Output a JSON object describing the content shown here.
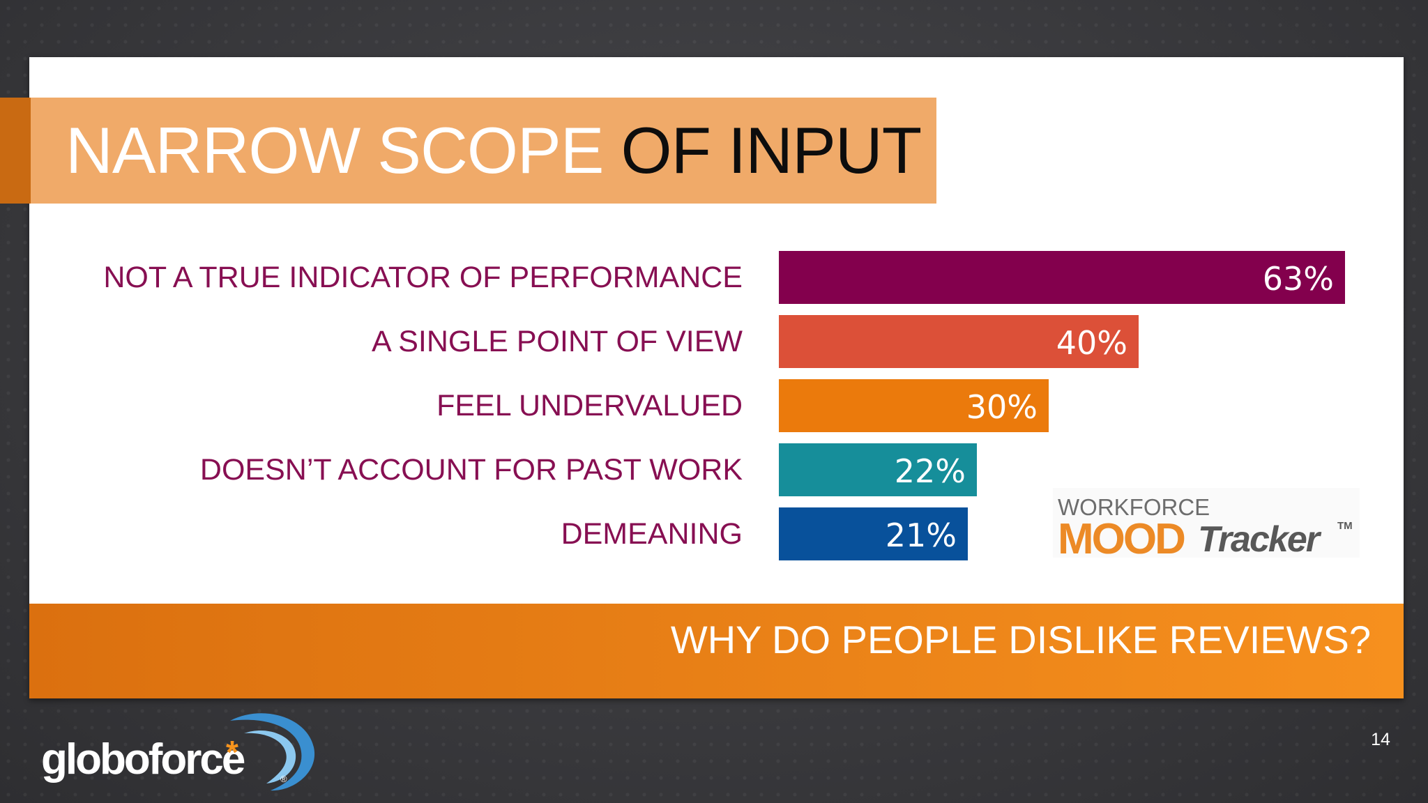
{
  "slide": {
    "title_part1": "NARROW SCOPE",
    "title_part2": "OF INPUT",
    "footer_question": "WHY DO PEOPLE DISLIKE REVIEWS?",
    "page_number": "14"
  },
  "logos": {
    "mood_top": "WORKFORCE",
    "mood_main": "MOOD",
    "mood_tracker": "Tracker",
    "mood_tm": "TM",
    "brand_name": "globoforce",
    "brand_star": "*",
    "brand_reg": "®"
  },
  "colors": {
    "title_band": "#f0aa69",
    "label_text": "#870f52",
    "footer_band": "#f08a1c"
  },
  "chart_data": {
    "type": "bar",
    "orientation": "horizontal",
    "categories": [
      "NOT A TRUE INDICATOR OF PERFORMANCE",
      "A SINGLE POINT OF VIEW",
      "FEEL UNDERVALUED",
      "DOESN’T ACCOUNT FOR PAST WORK",
      "DEMEANING"
    ],
    "values": [
      63,
      40,
      30,
      22,
      21
    ],
    "value_labels": [
      "63%",
      "40%",
      "30%",
      "22%",
      "21%"
    ],
    "bar_colors": [
      "#83004d",
      "#dc5038",
      "#eb7a0c",
      "#168e9a",
      "#08519b"
    ],
    "xlim": [
      0,
      63
    ],
    "grid": false,
    "legend": "none"
  }
}
